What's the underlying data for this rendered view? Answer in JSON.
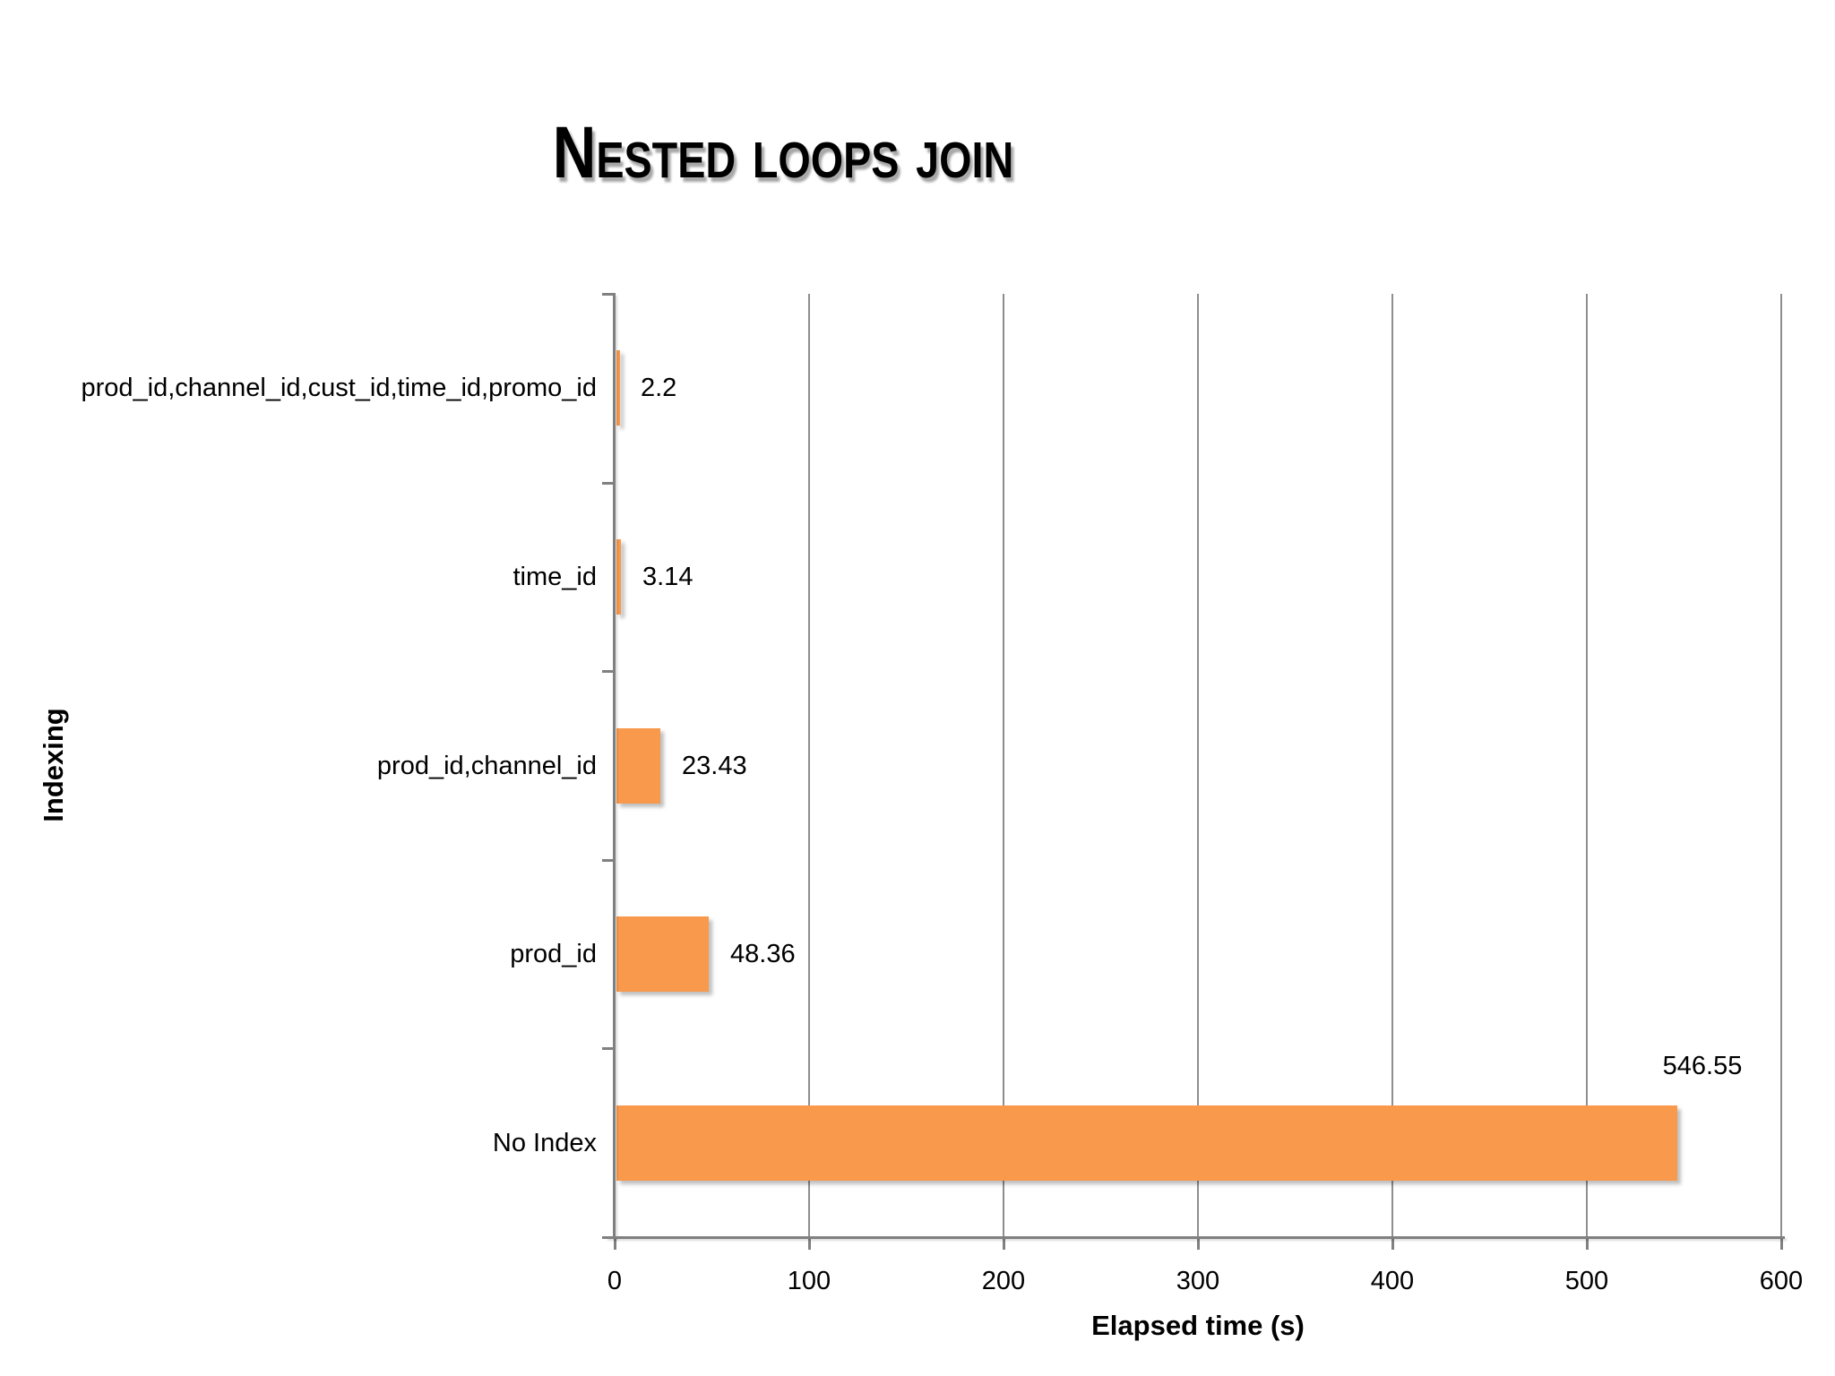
{
  "chart_data": {
    "type": "bar",
    "orientation": "horizontal",
    "title": "Nested loops join",
    "xlabel": "Elapsed time (s)",
    "ylabel": "Indexing",
    "categories": [
      "prod_id,channel_id,cust_id,time_id,promo_id",
      "time_id",
      "prod_id,channel_id",
      "prod_id",
      "No Index"
    ],
    "values": [
      2.2,
      3.14,
      23.43,
      48.36,
      546.55
    ],
    "value_labels": [
      "2.2",
      "3.14",
      "23.43",
      "48.36",
      "546.55"
    ],
    "xlim": [
      0,
      600
    ],
    "xticks": [
      0,
      100,
      200,
      300,
      400,
      500,
      600
    ],
    "grid": true,
    "legend": false,
    "bar_color": "#F8994C",
    "gridline_color": "#8e8e8e",
    "axis_color": "#808080",
    "text_color": "#000000",
    "background_color": "#ffffff"
  }
}
